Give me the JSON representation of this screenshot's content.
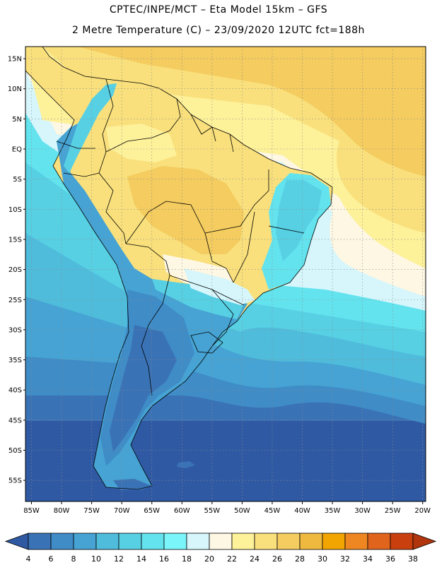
{
  "header": {
    "line1": "CPTEC/INPE/MCT –  Eta Model 15km – GFS",
    "line2": "2 Metre Temperature (C) – 23/09/2020 12UTC fct=188h"
  },
  "map": {
    "lon_range": [
      -86,
      -19.5
    ],
    "lat_range": [
      -58.5,
      17
    ],
    "lat_labels": [
      "15N",
      "10N",
      "5N",
      "EQ",
      "5S",
      "10S",
      "15S",
      "20S",
      "25S",
      "30S",
      "35S",
      "40S",
      "45S",
      "50S",
      "55S"
    ],
    "lat_values": [
      15,
      10,
      5,
      0,
      -5,
      -10,
      -15,
      -20,
      -25,
      -30,
      -35,
      -40,
      -45,
      -50,
      -55
    ],
    "lon_labels": [
      "85W",
      "80W",
      "75W",
      "70W",
      "65W",
      "60W",
      "55W",
      "50W",
      "45W",
      "40W",
      "35W",
      "30W",
      "25W",
      "20W"
    ],
    "lon_values": [
      -85,
      -80,
      -75,
      -70,
      -65,
      -60,
      -55,
      -50,
      -45,
      -40,
      -35,
      -30,
      -25,
      -20
    ],
    "grid": true
  },
  "colorbar": {
    "labels": [
      "4",
      "6",
      "8",
      "10",
      "12",
      "14",
      "16",
      "18",
      "20",
      "22",
      "24",
      "26",
      "28",
      "30",
      "32",
      "34",
      "36",
      "38"
    ],
    "colors": [
      "#2f5aa3",
      "#3a72b6",
      "#3f8cc7",
      "#46a3d3",
      "#4fbcdc",
      "#57d0e4",
      "#63e3ee",
      "#7af5fa",
      "#d6f6fb",
      "#fdf7e4",
      "#fdf19a",
      "#f9e07c",
      "#f4cc5f",
      "#efb93f",
      "#f2a400",
      "#ee8621",
      "#e0641c",
      "#c9400e",
      "#b2360d"
    ]
  }
}
